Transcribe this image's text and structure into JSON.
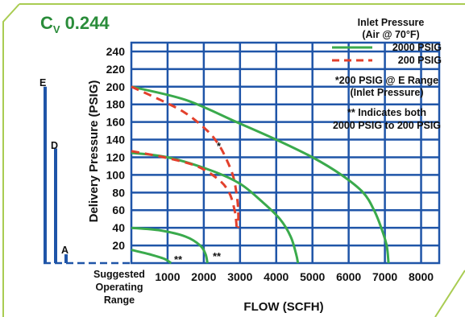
{
  "title_main": "C",
  "title_sub": "V",
  "title_value": "0.244",
  "colors": {
    "border": "#a9cc52",
    "grid": "#1f55a8",
    "green": "#3aaa4c",
    "red": "#e2402c",
    "title": "#2a8c3a",
    "range_bar": "#1f55a8"
  },
  "legend": {
    "heading_line1": "Inlet Pressure",
    "heading_line2": "(Air @ 70°F)",
    "item_2000": "2000 PSIG",
    "item_200": "200 PSIG",
    "note_e_line1": "*200 PSIG @ E Range",
    "note_e_line2": "(Inlet Pressure)",
    "note_both_line1": "** Indicates both",
    "note_both_line2": "2000 PSIG to 200 PSIG"
  },
  "side": {
    "letters": [
      "E",
      "D",
      "A"
    ],
    "bar_tops_psig": [
      200,
      130,
      10
    ],
    "label_line1": "Suggested",
    "label_line2": "Operating",
    "label_line3": "Range"
  },
  "chart_data": {
    "type": "line",
    "xlabel": "FLOW (SCFH)",
    "ylabel": "Delivery Pressure (PSIG)",
    "x_ticks": [
      1000,
      2000,
      3000,
      4000,
      5000,
      6000,
      7000,
      8000
    ],
    "y_ticks": [
      20,
      40,
      60,
      80,
      100,
      120,
      140,
      160,
      180,
      200,
      220,
      240
    ],
    "xlim": [
      0,
      8500
    ],
    "ylim": [
      0,
      250
    ],
    "grid": true,
    "annotations": [
      {
        "text": "*",
        "x": 3100,
        "y": 140
      },
      {
        "text": "**",
        "x": 1250,
        "y": 2
      },
      {
        "text": "**",
        "x": 2400,
        "y": 2
      }
    ],
    "series": [
      {
        "name": "2000 PSIG",
        "style": "solid",
        "points": [
          [
            0,
            200
          ],
          [
            1500,
            185
          ],
          [
            2900,
            160
          ],
          [
            4000,
            140
          ],
          [
            5000,
            120
          ],
          [
            5800,
            100
          ],
          [
            6400,
            80
          ],
          [
            6700,
            60
          ],
          [
            6900,
            40
          ],
          [
            7050,
            20
          ],
          [
            7100,
            0
          ]
        ]
      },
      {
        "name": "200 PSIG",
        "style": "dashed",
        "points": [
          [
            0,
            200
          ],
          [
            800,
            185
          ],
          [
            1500,
            170
          ],
          [
            2100,
            150
          ],
          [
            2400,
            135
          ],
          [
            2600,
            120
          ],
          [
            2800,
            100
          ],
          [
            2900,
            80
          ],
          [
            2950,
            60
          ],
          [
            2950,
            40
          ]
        ]
      },
      {
        "name": "2000 PSIG",
        "style": "solid",
        "points": [
          [
            0,
            125
          ],
          [
            1000,
            120
          ],
          [
            2200,
            105
          ],
          [
            3000,
            90
          ],
          [
            3600,
            70
          ],
          [
            4100,
            50
          ],
          [
            4400,
            30
          ],
          [
            4550,
            10
          ],
          [
            4600,
            0
          ]
        ]
      },
      {
        "name": "200 PSIG",
        "style": "dashed",
        "points": [
          [
            0,
            127
          ],
          [
            900,
            120
          ],
          [
            1800,
            110
          ],
          [
            2400,
            95
          ],
          [
            2700,
            80
          ],
          [
            2850,
            60
          ],
          [
            2900,
            45
          ],
          [
            2900,
            40
          ]
        ]
      },
      {
        "name": "2000 PSIG",
        "style": "solid",
        "points": [
          [
            0,
            40
          ],
          [
            800,
            37
          ],
          [
            1500,
            30
          ],
          [
            1900,
            20
          ],
          [
            2050,
            10
          ],
          [
            2100,
            0
          ]
        ]
      },
      {
        "name": "2000 PSIG",
        "style": "solid",
        "points": [
          [
            0,
            15
          ],
          [
            500,
            10
          ],
          [
            900,
            5
          ],
          [
            1100,
            0
          ]
        ]
      }
    ]
  }
}
